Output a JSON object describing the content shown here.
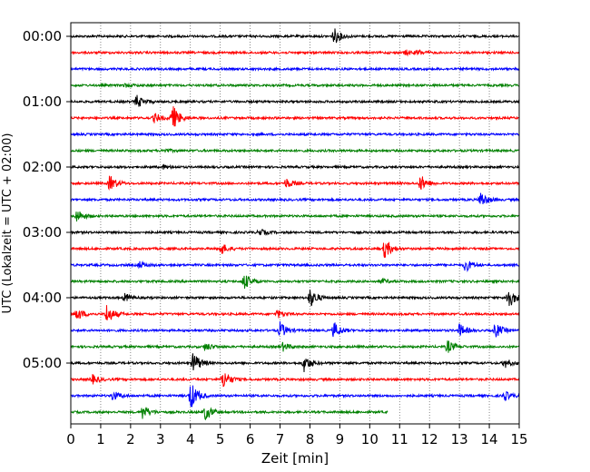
{
  "chart_data": {
    "type": "line",
    "title": "",
    "xlabel": "Zeit  [min]",
    "ylabel": "UTC (Lokalzeit = UTC + 02:00)",
    "xlim": [
      0,
      15
    ],
    "x_ticks": [
      0,
      1,
      2,
      3,
      4,
      5,
      6,
      7,
      8,
      9,
      10,
      11,
      12,
      13,
      14,
      15
    ],
    "y_tick_labels": [
      "00:00",
      "01:00",
      "02:00",
      "03:00",
      "04:00",
      "05:00"
    ],
    "grid": "vertical-dotted",
    "trace_interval_min": 15,
    "colors": [
      "#000000",
      "#ff0000",
      "#0000ff",
      "#008000"
    ],
    "series": [
      {
        "start": "00:00",
        "color": "#000000",
        "events": [
          {
            "t": 8.8,
            "amp": 1.0
          }
        ]
      },
      {
        "start": "00:15",
        "color": "#ff0000",
        "events": [
          {
            "t": 11.2,
            "amp": 0.3
          },
          {
            "t": 11.6,
            "amp": 0.3
          }
        ]
      },
      {
        "start": "00:30",
        "color": "#0000ff",
        "events": []
      },
      {
        "start": "00:45",
        "color": "#008000",
        "events": [
          {
            "t": 1.8,
            "amp": 0.2
          }
        ]
      },
      {
        "start": "01:00",
        "color": "#000000",
        "events": [
          {
            "t": 2.2,
            "amp": 0.8
          }
        ]
      },
      {
        "start": "01:15",
        "color": "#ff0000",
        "events": [
          {
            "t": 2.8,
            "amp": 0.6
          },
          {
            "t": 3.4,
            "amp": 1.6
          }
        ]
      },
      {
        "start": "01:30",
        "color": "#0000ff",
        "events": []
      },
      {
        "start": "01:45",
        "color": "#008000",
        "events": [
          {
            "t": 3.1,
            "amp": 0.2
          }
        ]
      },
      {
        "start": "02:00",
        "color": "#000000",
        "events": [
          {
            "t": 3.1,
            "amp": 0.2
          }
        ]
      },
      {
        "start": "02:15",
        "color": "#ff0000",
        "events": [
          {
            "t": 1.3,
            "amp": 1.0
          },
          {
            "t": 7.2,
            "amp": 0.6
          },
          {
            "t": 11.7,
            "amp": 1.0
          }
        ]
      },
      {
        "start": "02:30",
        "color": "#0000ff",
        "events": [
          {
            "t": 13.7,
            "amp": 1.0
          }
        ]
      },
      {
        "start": "02:45",
        "color": "#008000",
        "events": [
          {
            "t": 0.2,
            "amp": 0.8
          }
        ]
      },
      {
        "start": "03:00",
        "color": "#000000",
        "events": [
          {
            "t": 6.3,
            "amp": 0.4
          }
        ]
      },
      {
        "start": "03:15",
        "color": "#ff0000",
        "events": [
          {
            "t": 5.0,
            "amp": 0.8
          },
          {
            "t": 10.5,
            "amp": 1.2
          }
        ]
      },
      {
        "start": "03:30",
        "color": "#0000ff",
        "events": [
          {
            "t": 2.3,
            "amp": 0.4
          },
          {
            "t": 13.2,
            "amp": 0.8
          }
        ]
      },
      {
        "start": "03:45",
        "color": "#008000",
        "events": [
          {
            "t": 5.8,
            "amp": 1.0
          },
          {
            "t": 10.4,
            "amp": 0.3
          }
        ]
      },
      {
        "start": "04:00",
        "color": "#000000",
        "events": [
          {
            "t": 1.8,
            "amp": 0.5
          },
          {
            "t": 8.0,
            "amp": 1.2
          },
          {
            "t": 14.6,
            "amp": 1.6
          }
        ]
      },
      {
        "start": "04:15",
        "color": "#ff0000",
        "events": [
          {
            "t": 0.2,
            "amp": 0.8
          },
          {
            "t": 1.2,
            "amp": 1.2
          },
          {
            "t": 6.9,
            "amp": 0.5
          }
        ]
      },
      {
        "start": "04:30",
        "color": "#0000ff",
        "events": [
          {
            "t": 7.0,
            "amp": 1.0
          },
          {
            "t": 8.8,
            "amp": 1.0
          },
          {
            "t": 13.0,
            "amp": 0.8
          },
          {
            "t": 14.2,
            "amp": 0.9
          }
        ]
      },
      {
        "start": "04:45",
        "color": "#008000",
        "events": [
          {
            "t": 4.5,
            "amp": 0.5
          },
          {
            "t": 7.1,
            "amp": 0.5
          },
          {
            "t": 12.6,
            "amp": 0.8
          }
        ]
      },
      {
        "start": "05:00",
        "color": "#000000",
        "events": [
          {
            "t": 4.1,
            "amp": 1.4
          },
          {
            "t": 7.8,
            "amp": 1.0
          },
          {
            "t": 14.5,
            "amp": 0.6
          }
        ]
      },
      {
        "start": "05:15",
        "color": "#ff0000",
        "events": [
          {
            "t": 0.7,
            "amp": 0.6
          },
          {
            "t": 5.1,
            "amp": 1.2
          }
        ]
      },
      {
        "start": "05:30",
        "color": "#0000ff",
        "events": [
          {
            "t": 1.4,
            "amp": 0.6
          },
          {
            "t": 4.0,
            "amp": 1.8
          },
          {
            "t": 14.5,
            "amp": 0.6
          }
        ]
      },
      {
        "start": "05:45",
        "color": "#008000",
        "end_min": 10.6,
        "events": [
          {
            "t": 2.4,
            "amp": 0.9
          },
          {
            "t": 4.5,
            "amp": 1.0
          }
        ]
      }
    ]
  }
}
